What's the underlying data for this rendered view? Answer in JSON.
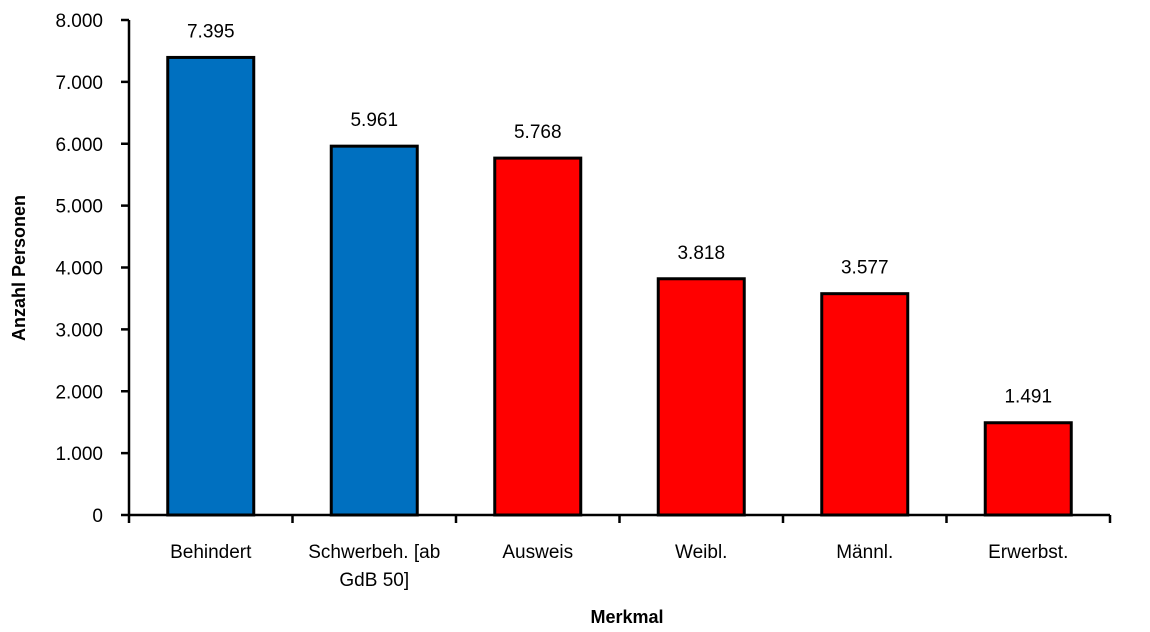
{
  "chart_data": {
    "type": "bar",
    "title": "",
    "xlabel": "Merkmal",
    "ylabel": "Anzahl Personen",
    "categories": [
      [
        "Behindert"
      ],
      [
        "Schwerbeh. [ab",
        "GdB 50]"
      ],
      [
        "Ausweis"
      ],
      [
        "Weibl."
      ],
      [
        "Männl."
      ],
      [
        "Erwerbst."
      ]
    ],
    "values": [
      7395,
      5961,
      5768,
      3818,
      3577,
      1491
    ],
    "value_labels": [
      "7.395",
      "5.961",
      "5.768",
      "3.818",
      "3.577",
      "1.491"
    ],
    "bar_colors": [
      "#0070c0",
      "#0070c0",
      "#ff0000",
      "#ff0000",
      "#ff0000",
      "#ff0000"
    ],
    "ylim": [
      0,
      8000
    ],
    "yticks": [
      0,
      1000,
      2000,
      3000,
      4000,
      5000,
      6000,
      7000,
      8000
    ],
    "ytick_labels": [
      "0",
      "1.000",
      "2.000",
      "3.000",
      "4.000",
      "5.000",
      "6.000",
      "7.000",
      "8.000"
    ],
    "grid": false,
    "legend": "none"
  }
}
